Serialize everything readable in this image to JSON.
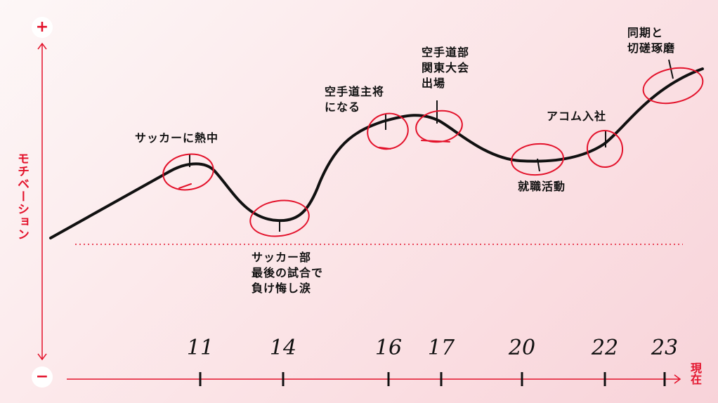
{
  "chart_data": {
    "type": "line",
    "ylabel": "モチベーション",
    "y_max_label": "+",
    "y_min_label": "−",
    "x_end_label": "現在",
    "years": [
      "11",
      "14",
      "16",
      "17",
      "20",
      "22",
      "23"
    ],
    "events": [
      {
        "text": "サッカーに熱中",
        "year": "11"
      },
      {
        "text": "サッカー部\n最後の試合で\n負け悔し涙",
        "year": "14"
      },
      {
        "text": "空手道主将\nになる",
        "year": "16"
      },
      {
        "text": "空手道部\n関東大会\n出場",
        "year": "17"
      },
      {
        "text": "就職活動",
        "year": "20"
      },
      {
        "text": "アコム入社",
        "year": "22"
      },
      {
        "text": "同期と\n切磋琢磨",
        "year": "23"
      }
    ]
  },
  "colors": {
    "accent": "#e3122b",
    "curve": "#111111"
  }
}
